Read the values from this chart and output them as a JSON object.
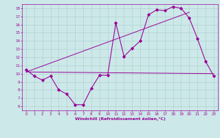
{
  "title": "",
  "xlabel": "Windchill (Refroidissement éolien,°C)",
  "ylabel": "",
  "bg_color": "#cce8e8",
  "line_color": "#990099",
  "grid_color": "#aacccc",
  "xlim": [
    -0.5,
    23.5
  ],
  "ylim": [
    5.5,
    18.5
  ],
  "xticks": [
    0,
    1,
    2,
    3,
    4,
    5,
    6,
    7,
    8,
    9,
    10,
    11,
    12,
    13,
    14,
    15,
    16,
    17,
    18,
    19,
    20,
    21,
    22,
    23
  ],
  "yticks": [
    6,
    7,
    8,
    9,
    10,
    11,
    12,
    13,
    14,
    15,
    16,
    17,
    18
  ],
  "data_x": [
    0,
    1,
    2,
    3,
    4,
    5,
    6,
    7,
    8,
    9,
    10,
    11,
    12,
    13,
    14,
    15,
    16,
    17,
    18,
    19,
    20,
    21,
    22,
    23
  ],
  "data_y": [
    10.5,
    9.7,
    9.2,
    9.7,
    8.0,
    7.5,
    6.2,
    6.2,
    8.2,
    9.8,
    9.8,
    16.2,
    12.1,
    13.1,
    14.0,
    17.2,
    17.8,
    17.7,
    18.2,
    18.0,
    16.8,
    14.3,
    11.5,
    9.7
  ],
  "trend1_x": [
    0,
    23
  ],
  "trend1_y": [
    10.2,
    10.0
  ],
  "trend2_x": [
    0,
    20
  ],
  "trend2_y": [
    10.2,
    17.5
  ]
}
